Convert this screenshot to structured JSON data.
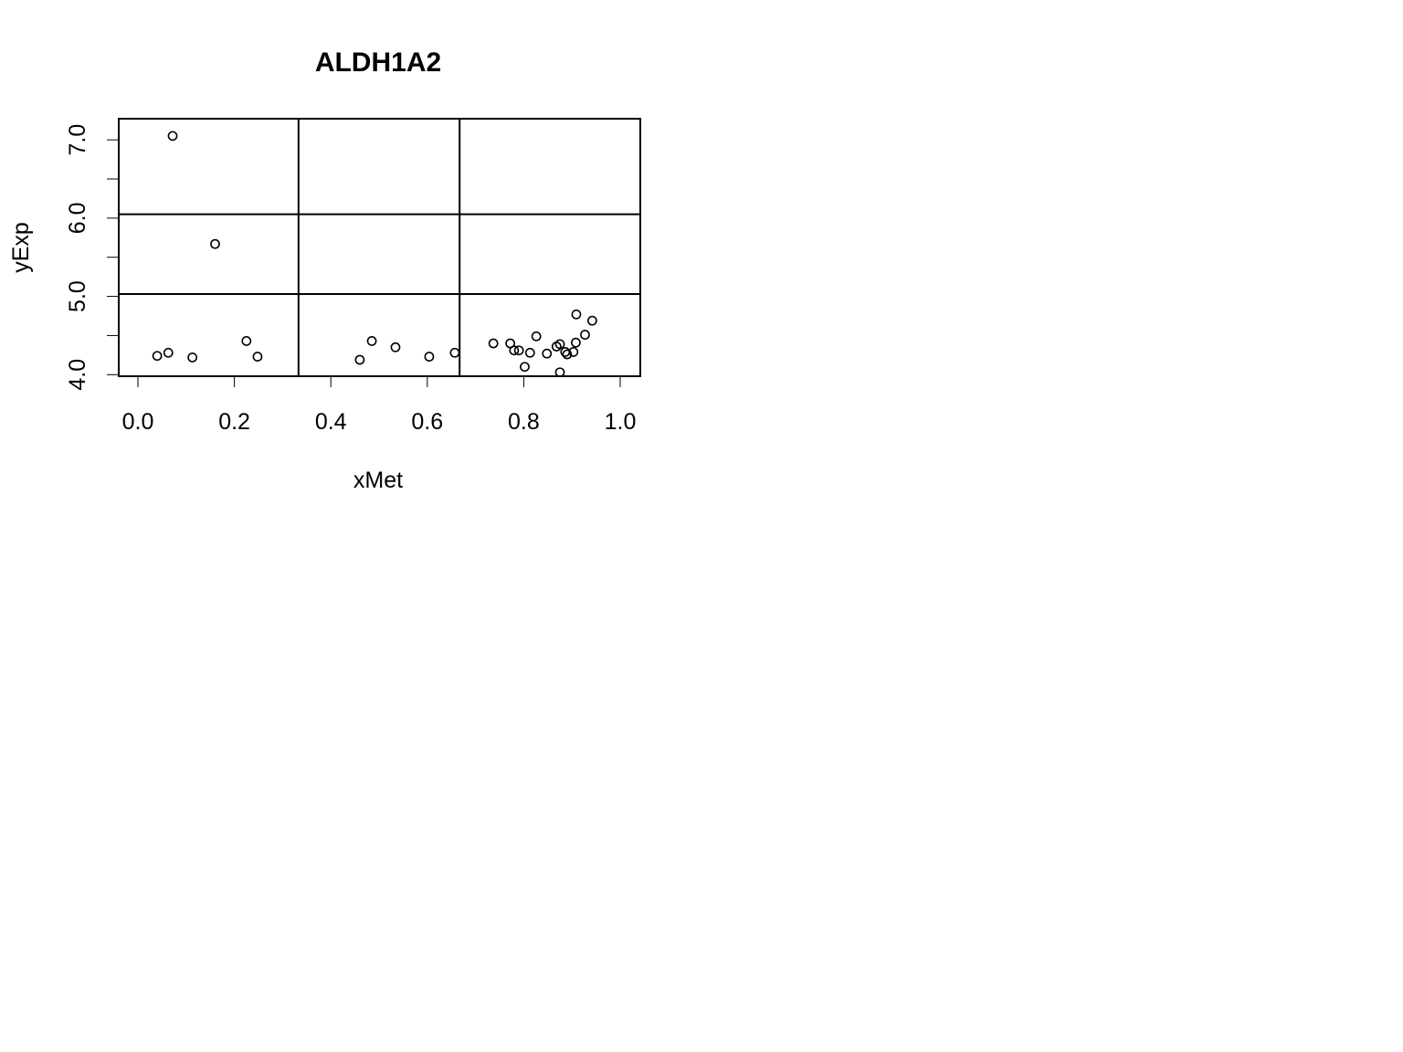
{
  "chart_data": {
    "type": "scatter",
    "title": "ALDH1A2",
    "xlabel": "xMet",
    "ylabel": "yExp",
    "xlim": [
      0.0,
      1.0
    ],
    "ylim": [
      3.98,
      7.27
    ],
    "x_ticks": [
      "0.0",
      "0.2",
      "0.4",
      "0.6",
      "0.8",
      "1.0"
    ],
    "y_ticks": [
      "4.0",
      "5.0",
      "6.0",
      "7.0"
    ],
    "y_minor_ticks": [
      4.5,
      5.5,
      6.5
    ],
    "grid": {
      "vertical_lines": [
        0.333,
        0.667
      ],
      "horizontal_lines": [
        5.03,
        6.05
      ]
    },
    "marker": "open-circle",
    "points": [
      {
        "x": 0.072,
        "y": 7.05
      },
      {
        "x": 0.16,
        "y": 5.67
      },
      {
        "x": 0.04,
        "y": 4.24
      },
      {
        "x": 0.063,
        "y": 4.28
      },
      {
        "x": 0.113,
        "y": 4.22
      },
      {
        "x": 0.225,
        "y": 4.43
      },
      {
        "x": 0.248,
        "y": 4.23
      },
      {
        "x": 0.46,
        "y": 4.19
      },
      {
        "x": 0.485,
        "y": 4.43
      },
      {
        "x": 0.534,
        "y": 4.35
      },
      {
        "x": 0.604,
        "y": 4.23
      },
      {
        "x": 0.657,
        "y": 4.28
      },
      {
        "x": 0.737,
        "y": 4.4
      },
      {
        "x": 0.772,
        "y": 4.4
      },
      {
        "x": 0.78,
        "y": 4.31
      },
      {
        "x": 0.79,
        "y": 4.31
      },
      {
        "x": 0.802,
        "y": 4.1
      },
      {
        "x": 0.813,
        "y": 4.28
      },
      {
        "x": 0.826,
        "y": 4.49
      },
      {
        "x": 0.848,
        "y": 4.27
      },
      {
        "x": 0.868,
        "y": 4.36
      },
      {
        "x": 0.875,
        "y": 4.39
      },
      {
        "x": 0.875,
        "y": 4.03
      },
      {
        "x": 0.886,
        "y": 4.29
      },
      {
        "x": 0.89,
        "y": 4.26
      },
      {
        "x": 0.903,
        "y": 4.29
      },
      {
        "x": 0.908,
        "y": 4.41
      },
      {
        "x": 0.909,
        "y": 4.77
      },
      {
        "x": 0.927,
        "y": 4.51
      },
      {
        "x": 0.942,
        "y": 4.69
      }
    ]
  }
}
